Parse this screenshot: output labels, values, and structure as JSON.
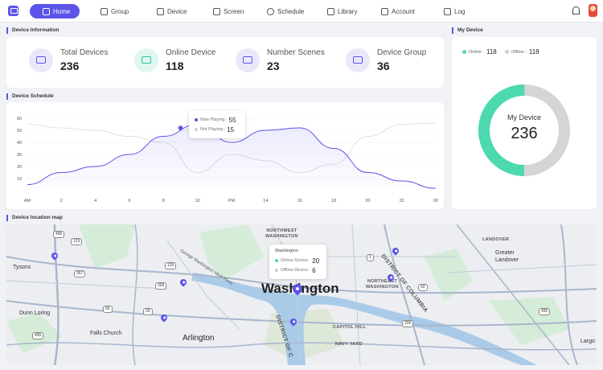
{
  "nav": {
    "items": [
      {
        "label": "Home",
        "icon": "home-icon",
        "active": true
      },
      {
        "label": "Group",
        "icon": "group-icon"
      },
      {
        "label": "Device",
        "icon": "device-icon"
      },
      {
        "label": "Screen",
        "icon": "screen-icon"
      },
      {
        "label": "Schedule",
        "icon": "schedule-icon"
      },
      {
        "label": "Library",
        "icon": "library-icon"
      },
      {
        "label": "Account",
        "icon": "account-icon"
      },
      {
        "label": "Log",
        "icon": "log-icon"
      }
    ]
  },
  "device_info": {
    "title": "Device Information",
    "stats": [
      {
        "label": "Total Devices",
        "value": "236",
        "icon": "router-icon"
      },
      {
        "label": "Online Device",
        "value": "118",
        "icon": "monitor-icon"
      },
      {
        "label": "Number Scenes",
        "value": "23",
        "icon": "clapper-icon"
      },
      {
        "label": "Device Group",
        "value": "36",
        "icon": "network-icon"
      }
    ]
  },
  "my_device": {
    "title": "My Device",
    "online_label": "Online :",
    "online_value": "118",
    "offline_label": "Offline :",
    "offline_value": "118",
    "center_label": "My Device",
    "center_value": "236",
    "colors": {
      "online": "#4dd9b0",
      "offline": "#d5d5d5"
    }
  },
  "schedule": {
    "title": "Device Schedule",
    "tooltip": {
      "now_label": "Now Playing :",
      "now_value": "55",
      "not_label": "Not Playing :",
      "not_value": "15"
    }
  },
  "chart_data": {
    "type": "area",
    "categories": [
      "AM",
      "2",
      "4",
      "6",
      "8",
      "10",
      "PM",
      "14",
      "16",
      "18",
      "20",
      "22",
      "00"
    ],
    "y_ticks": [
      "60",
      "50",
      "40",
      "30",
      "20",
      "10"
    ],
    "ylim": [
      0,
      60
    ],
    "series": [
      {
        "values": [
          5,
          15,
          20,
          30,
          45,
          55,
          40,
          50,
          52,
          35,
          15,
          8,
          2
        ],
        "color": "#5b54e8"
      },
      {
        "values": [
          55,
          52,
          50,
          45,
          40,
          15,
          30,
          25,
          15,
          22,
          45,
          55,
          56
        ],
        "color": "#d9d9e3"
      }
    ]
  },
  "map": {
    "title": "Device location map",
    "labels": {
      "tysons": "Tysons",
      "dunn_loring": "Dunn Loring",
      "falls_church": "Falls Church",
      "arlington": "Arlington",
      "washington": "Washington",
      "nw_washington": "NORTHWEST\nWASHINGTON",
      "ne_washington": "NORTHEAST\nWASHINGTON",
      "dc": "DISTRICT OF COLUMBIA",
      "dc2": "DISTRICT OF C",
      "landover": "LANDOVER",
      "greater_landover": "Greater\nLandover",
      "capitol_hill": "CAPITOL HILL",
      "navy_yard": "NAVY YARD",
      "parkway": "George Washington Mem Pkwy",
      "largo": "Largo"
    },
    "shields": [
      "495",
      "123",
      "267",
      "66",
      "29",
      "309",
      "120",
      "1",
      "50",
      "295",
      "495",
      "495"
    ],
    "tooltip": {
      "title": "Washington",
      "online_label": "Online Device :",
      "online_value": "20",
      "offline_label": "Offline Device :",
      "offline_value": "6"
    }
  }
}
